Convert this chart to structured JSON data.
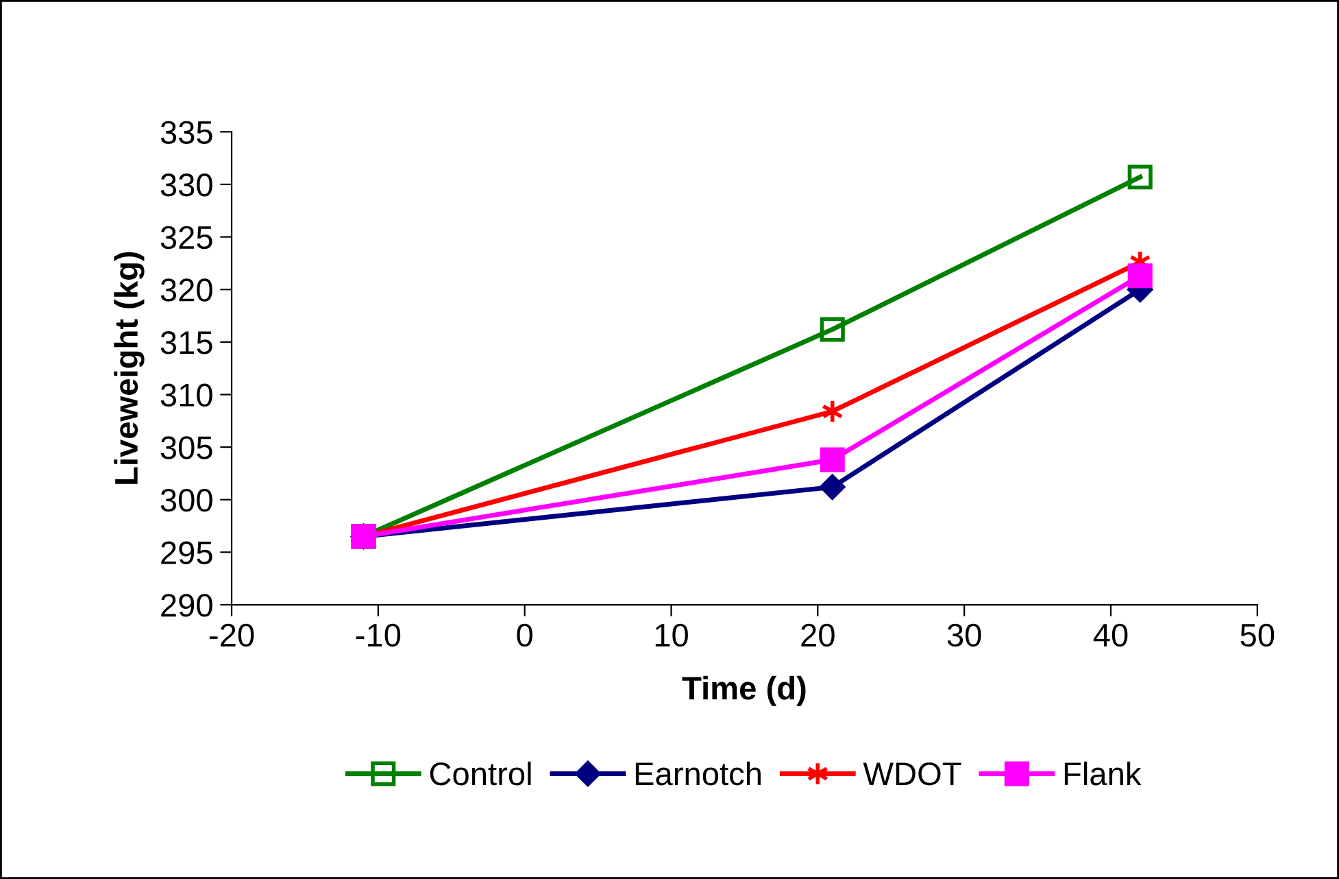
{
  "chart_data": {
    "type": "line",
    "xlabel": "Time (d)",
    "ylabel": "Liveweight (kg)",
    "x": [
      -11,
      21,
      42
    ],
    "series": [
      {
        "name": "Control",
        "color": "#008000",
        "values": [
          296.5,
          316.2,
          330.7
        ],
        "marker": "square"
      },
      {
        "name": "Earnotch",
        "color": "#000080",
        "values": [
          296.5,
          301.2,
          320.0
        ],
        "marker": "diamond"
      },
      {
        "name": "WDOT",
        "color": "#ff0000",
        "values": [
          296.5,
          308.4,
          322.6
        ],
        "marker": "cross"
      },
      {
        "name": "Flank",
        "color": "#ff00ff",
        "values": [
          296.5,
          303.8,
          321.3
        ],
        "marker": "square"
      }
    ],
    "xlim": [
      -20,
      50
    ],
    "xticks": [
      -20,
      -10,
      0,
      10,
      20,
      30,
      40,
      50
    ],
    "ylim": [
      290,
      335
    ],
    "yticks": [
      290,
      295,
      300,
      305,
      310,
      315,
      320,
      325,
      330,
      335
    ],
    "grid": false,
    "legend": "bottom",
    "line_style": "solid"
  }
}
